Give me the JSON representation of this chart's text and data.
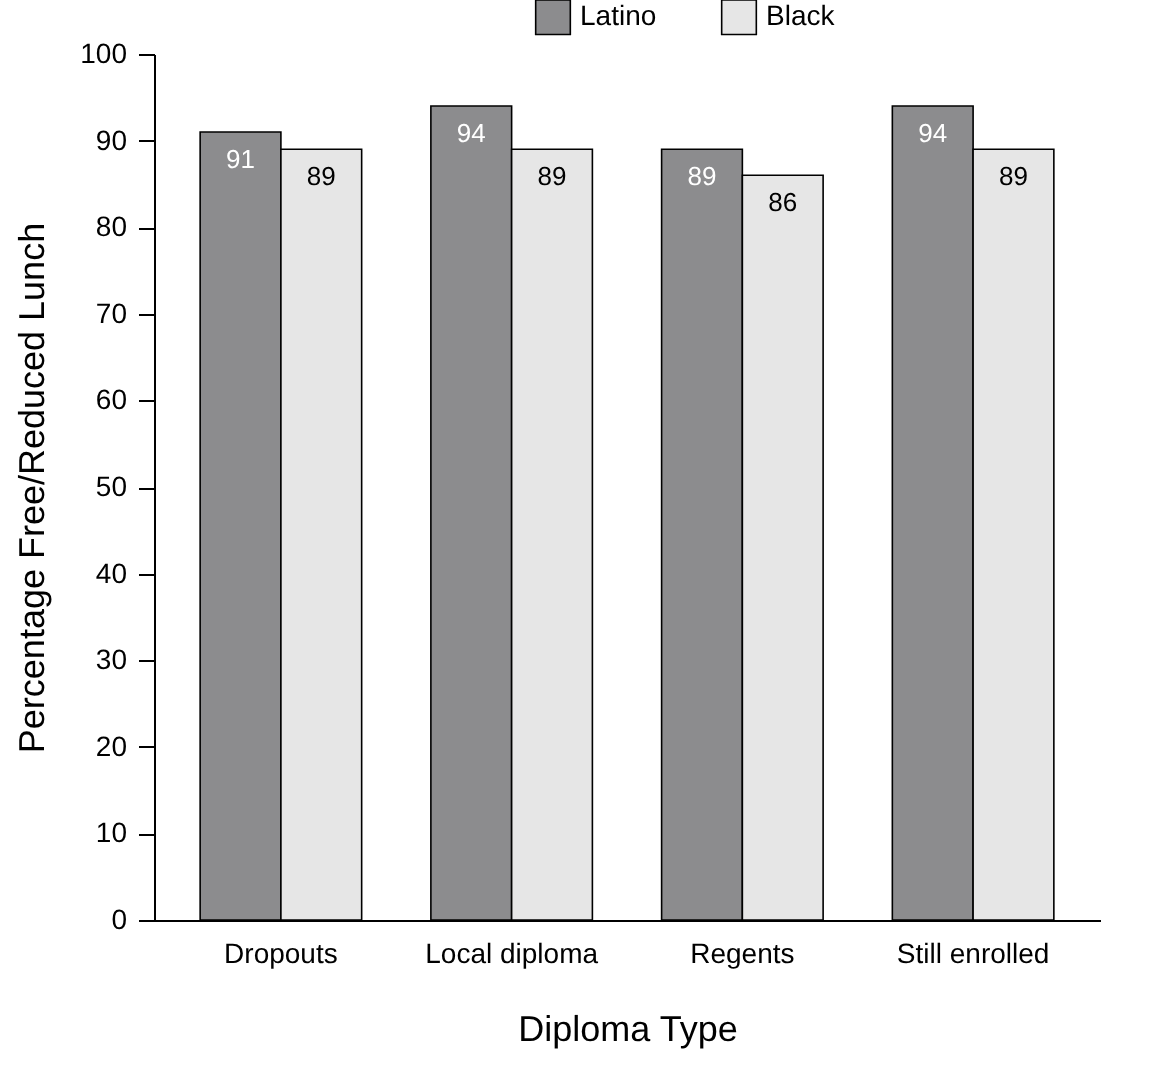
{
  "chart_data": {
    "type": "bar",
    "xlabel": "Diploma Type",
    "ylabel": "Percentage Free/Reduced Lunch",
    "categories": [
      "Dropouts",
      "Local diploma",
      "Regents",
      "Still enrolled"
    ],
    "series": [
      {
        "name": "Latino",
        "color": "#8c8c8e",
        "values": [
          91,
          94,
          89,
          94
        ]
      },
      {
        "name": "Black",
        "color": "#e6e6e6",
        "values": [
          89,
          89,
          86,
          89
        ]
      }
    ],
    "ylim": [
      0,
      100
    ],
    "yticks": [
      0,
      10,
      20,
      30,
      40,
      50,
      60,
      70,
      80,
      90,
      100
    ],
    "data_labels": true,
    "legend": "top",
    "grid": false
  }
}
